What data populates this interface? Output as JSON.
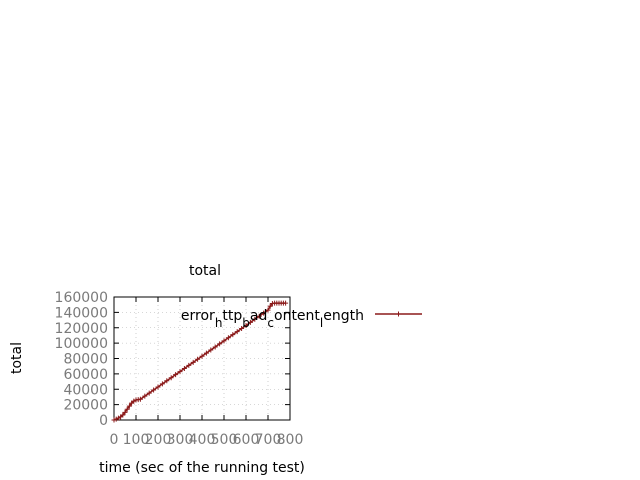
{
  "chart_data": {
    "type": "line",
    "title": "total",
    "xlabel": "time (sec of the running test)",
    "ylabel": "total",
    "xlim": [
      0,
      800
    ],
    "ylim": [
      0,
      160000
    ],
    "xticks": [
      "0",
      "100",
      "200",
      "300",
      "400",
      "500",
      "600",
      "700",
      "800"
    ],
    "yticks": [
      "0",
      "20000",
      "40000",
      "60000",
      "80000",
      "100000",
      "120000",
      "140000",
      "160000"
    ],
    "grid": true,
    "legend_position": "top-right",
    "series": [
      {
        "name": "error_http_bad_content_length",
        "legend_parts": [
          {
            "text": "error",
            "sub": false
          },
          {
            "text": "h",
            "sub": true
          },
          {
            "text": "ttp",
            "sub": false
          },
          {
            "text": "b",
            "sub": true
          },
          {
            "text": "ad",
            "sub": false
          },
          {
            "text": "c",
            "sub": true
          },
          {
            "text": "ontent",
            "sub": false
          },
          {
            "text": "l",
            "sub": true
          },
          {
            "text": "ength",
            "sub": false
          }
        ],
        "color": "#8b1a1a",
        "x": [
          0,
          10,
          20,
          30,
          40,
          50,
          60,
          70,
          80,
          90,
          100,
          110,
          120,
          140,
          160,
          180,
          200,
          220,
          240,
          260,
          280,
          300,
          320,
          340,
          360,
          380,
          400,
          420,
          440,
          460,
          480,
          500,
          520,
          540,
          560,
          580,
          600,
          620,
          640,
          660,
          680,
          700,
          710,
          720,
          730,
          740,
          750,
          760,
          770,
          780
        ],
        "y": [
          0,
          1200,
          2500,
          4000,
          6500,
          10000,
          14000,
          18000,
          22000,
          24500,
          26000,
          26500,
          27000,
          31000,
          35000,
          39000,
          43000,
          47000,
          51000,
          55000,
          59000,
          63000,
          67000,
          71000,
          75000,
          79000,
          83000,
          87000,
          91000,
          95000,
          99000,
          103000,
          107000,
          111000,
          115000,
          119000,
          123000,
          127000,
          131000,
          135000,
          139000,
          143000,
          148000,
          151500,
          152000,
          152000,
          152000,
          152000,
          152000,
          152000
        ]
      }
    ]
  }
}
